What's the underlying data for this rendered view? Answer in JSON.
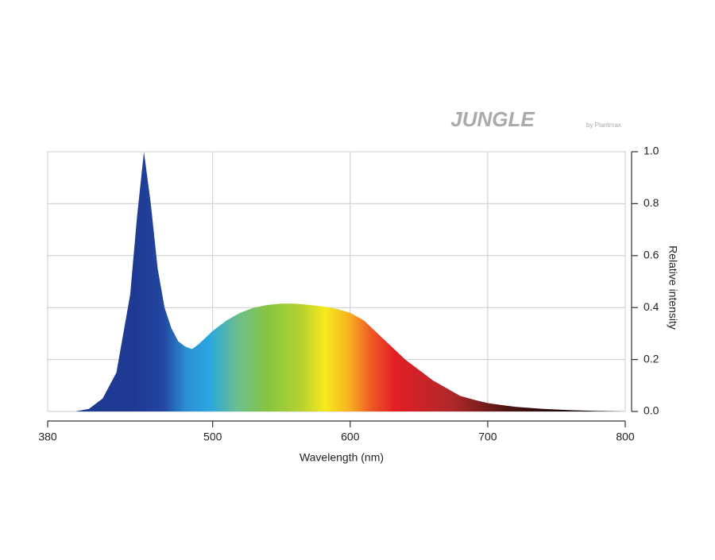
{
  "chart_data": {
    "type": "area",
    "logo": "JUNGLE",
    "logo_sub": "by Plantmax",
    "xlabel": "Wavelength (nm)",
    "ylabel": "Relative intensity",
    "x": [
      400,
      410,
      420,
      430,
      440,
      445,
      450,
      455,
      460,
      465,
      470,
      475,
      480,
      485,
      490,
      500,
      510,
      520,
      530,
      540,
      550,
      560,
      570,
      580,
      590,
      600,
      610,
      620,
      630,
      640,
      650,
      660,
      670,
      680,
      690,
      700,
      720,
      740,
      760,
      780,
      800
    ],
    "values": [
      0.0,
      0.01,
      0.05,
      0.15,
      0.45,
      0.75,
      1.0,
      0.8,
      0.55,
      0.4,
      0.32,
      0.27,
      0.25,
      0.24,
      0.26,
      0.31,
      0.35,
      0.38,
      0.4,
      0.41,
      0.415,
      0.415,
      0.41,
      0.405,
      0.395,
      0.38,
      0.35,
      0.3,
      0.25,
      0.2,
      0.16,
      0.12,
      0.09,
      0.06,
      0.045,
      0.032,
      0.018,
      0.01,
      0.005,
      0.002,
      0.0
    ],
    "xlim": [
      380,
      800
    ],
    "xticks": [
      380,
      500,
      600,
      700,
      800
    ],
    "ylim": [
      0,
      1
    ],
    "yticks": [
      {
        "value": 0,
        "label": "0.0"
      },
      0.2,
      0.4,
      0.6,
      0.8,
      {
        "value": 1,
        "label": "1.0"
      }
    ],
    "grid": true
  }
}
